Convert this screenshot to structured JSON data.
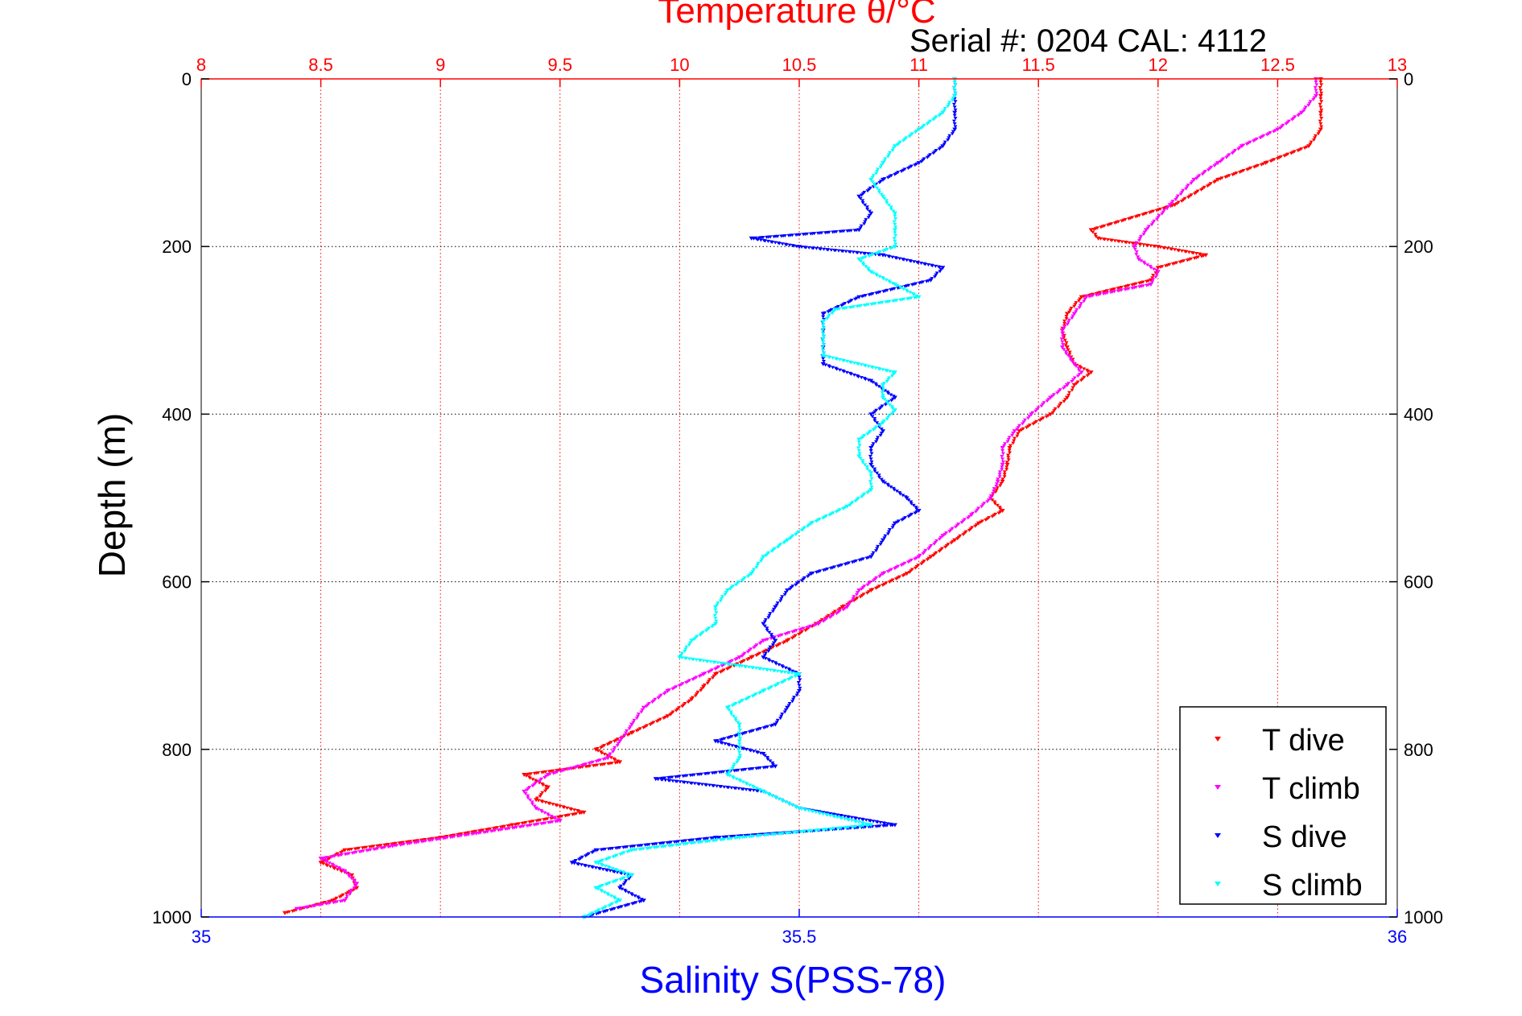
{
  "figure": {
    "top_title": "Temperature θ/°C",
    "annotation": "Serial #: 0204  CAL: 4112",
    "colors": {
      "temperature_axis": "#ff0000",
      "salinity_axis": "#0000ff",
      "t_dive": "#ff0000",
      "t_climb": "#ff00ff",
      "s_dive": "#0000ff",
      "s_climb": "#00ffff",
      "grid_temperature": "#ff0000",
      "grid_depth": "#000000"
    }
  },
  "chart_data": {
    "type": "scatter",
    "title": "Temperature θ/°C",
    "ylabel": "Depth (m)",
    "xlabel": "Salinity S(PSS-78)",
    "x_top_label": "Temperature θ/°C",
    "ylim": [
      0,
      1000
    ],
    "y_reversed": true,
    "x_top_lim": [
      8,
      13
    ],
    "x_bottom_lim": [
      35,
      36
    ],
    "y_ticks": [
      "0",
      "200",
      "400",
      "600",
      "800",
      "1000"
    ],
    "x_top_ticks": [
      "8",
      "8.5",
      "9",
      "9.5",
      "10",
      "10.5",
      "11",
      "11.5",
      "12",
      "12.5",
      "13"
    ],
    "x_bottom_ticks": [
      "35",
      "35.5",
      "36"
    ],
    "grid": true,
    "legend_position": "bottom-right",
    "series": [
      {
        "name": "T dive",
        "axis": "temperature",
        "color": "#ff0000",
        "depth": [
          0,
          20,
          40,
          60,
          80,
          100,
          120,
          150,
          180,
          190,
          200,
          210,
          225,
          240,
          260,
          280,
          300,
          320,
          340,
          350,
          365,
          380,
          400,
          420,
          440,
          460,
          480,
          500,
          515,
          530,
          550,
          570,
          590,
          610,
          630,
          650,
          670,
          690,
          710,
          725,
          740,
          760,
          780,
          800,
          815,
          830,
          845,
          860,
          875,
          890,
          905,
          920,
          935,
          950,
          965,
          980,
          995
        ],
        "values": [
          12.68,
          12.68,
          12.68,
          12.68,
          12.63,
          12.45,
          12.25,
          12.07,
          11.72,
          11.75,
          12.0,
          12.2,
          12.0,
          11.97,
          11.68,
          11.62,
          11.6,
          11.62,
          11.65,
          11.72,
          11.65,
          11.62,
          11.55,
          11.42,
          11.38,
          11.37,
          11.35,
          11.3,
          11.35,
          11.25,
          11.15,
          11.05,
          10.95,
          10.8,
          10.68,
          10.57,
          10.45,
          10.3,
          10.15,
          10.1,
          10.05,
          9.95,
          9.8,
          9.65,
          9.75,
          9.35,
          9.45,
          9.4,
          9.6,
          9.3,
          9.0,
          8.6,
          8.5,
          8.63,
          8.65,
          8.55,
          8.35
        ]
      },
      {
        "name": "T climb",
        "axis": "temperature",
        "color": "#ff00ff",
        "depth": [
          0,
          20,
          40,
          60,
          80,
          100,
          120,
          150,
          180,
          200,
          215,
          230,
          245,
          260,
          280,
          300,
          320,
          340,
          350,
          365,
          380,
          400,
          420,
          440,
          460,
          480,
          500,
          520,
          545,
          570,
          590,
          610,
          630,
          650,
          670,
          690,
          710,
          730,
          750,
          770,
          790,
          810,
          830,
          850,
          870,
          885,
          900,
          915,
          930,
          945,
          960,
          980,
          990
        ],
        "values": [
          12.66,
          12.66,
          12.6,
          12.5,
          12.35,
          12.25,
          12.15,
          12.05,
          11.95,
          11.9,
          11.92,
          12.0,
          11.97,
          11.7,
          11.65,
          11.6,
          11.6,
          11.65,
          11.68,
          11.62,
          11.55,
          11.47,
          11.4,
          11.35,
          11.35,
          11.33,
          11.3,
          11.22,
          11.1,
          11.0,
          10.85,
          10.75,
          10.7,
          10.58,
          10.35,
          10.25,
          10.1,
          9.95,
          9.85,
          9.8,
          9.75,
          9.7,
          9.45,
          9.35,
          9.4,
          9.5,
          9.15,
          8.8,
          8.5,
          8.6,
          8.65,
          8.6,
          8.4
        ]
      },
      {
        "name": "S dive",
        "axis": "salinity",
        "color": "#0000ff",
        "depth": [
          0,
          20,
          40,
          60,
          80,
          100,
          120,
          140,
          160,
          180,
          190,
          200,
          210,
          225,
          240,
          260,
          280,
          300,
          320,
          340,
          360,
          380,
          400,
          420,
          440,
          460,
          480,
          500,
          515,
          530,
          550,
          570,
          590,
          610,
          630,
          650,
          670,
          690,
          710,
          730,
          750,
          770,
          790,
          805,
          820,
          835,
          850,
          870,
          890,
          905,
          920,
          935,
          950,
          965,
          980,
          1000
        ],
        "values": [
          35.63,
          35.63,
          35.63,
          35.63,
          35.62,
          35.6,
          35.57,
          35.55,
          35.56,
          35.55,
          35.46,
          35.5,
          35.57,
          35.62,
          35.61,
          35.55,
          35.52,
          35.52,
          35.52,
          35.52,
          35.56,
          35.58,
          35.56,
          35.57,
          35.56,
          35.56,
          35.57,
          35.59,
          35.6,
          35.58,
          35.57,
          35.56,
          35.51,
          35.49,
          35.48,
          35.47,
          35.48,
          35.47,
          35.5,
          35.5,
          35.49,
          35.48,
          35.43,
          35.47,
          35.48,
          35.38,
          35.47,
          35.5,
          35.58,
          35.43,
          35.33,
          35.31,
          35.36,
          35.35,
          35.37,
          35.32
        ]
      },
      {
        "name": "S climb",
        "axis": "salinity",
        "color": "#00ffff",
        "depth": [
          0,
          20,
          40,
          60,
          80,
          100,
          120,
          140,
          160,
          180,
          200,
          215,
          230,
          245,
          260,
          275,
          290,
          310,
          330,
          350,
          365,
          380,
          395,
          410,
          430,
          450,
          470,
          490,
          510,
          530,
          550,
          570,
          590,
          610,
          630,
          650,
          670,
          690,
          700,
          710,
          730,
          750,
          770,
          790,
          810,
          830,
          850,
          870,
          890,
          905,
          920,
          935,
          950,
          965,
          980,
          1000
        ],
        "values": [
          35.63,
          35.63,
          35.62,
          35.6,
          35.58,
          35.57,
          35.56,
          35.57,
          35.58,
          35.58,
          35.58,
          35.55,
          35.56,
          35.58,
          35.6,
          35.53,
          35.52,
          35.52,
          35.52,
          35.58,
          35.57,
          35.57,
          35.58,
          35.57,
          35.55,
          35.55,
          35.56,
          35.56,
          35.54,
          35.51,
          35.49,
          35.47,
          35.46,
          35.44,
          35.43,
          35.43,
          35.41,
          35.4,
          35.45,
          35.5,
          35.47,
          35.44,
          35.45,
          35.45,
          35.45,
          35.44,
          35.47,
          35.5,
          35.56,
          35.45,
          35.36,
          35.33,
          35.36,
          35.33,
          35.35,
          35.32
        ]
      }
    ]
  }
}
